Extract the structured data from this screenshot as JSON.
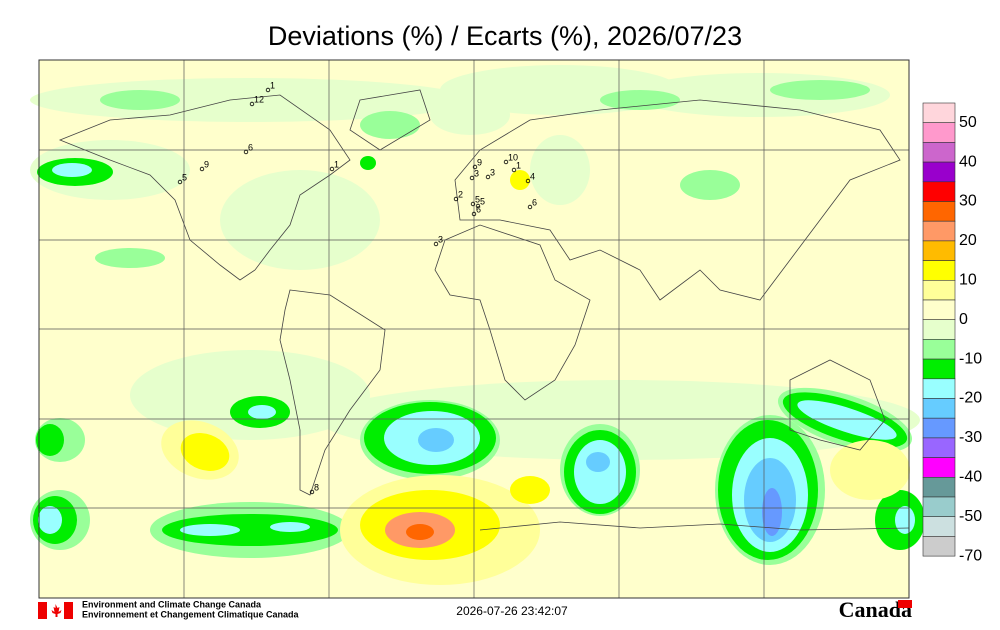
{
  "title": "Deviations (%) / Ecarts (%), 2026/07/23",
  "colorbar": {
    "labels": [
      50,
      40,
      30,
      20,
      10,
      0,
      -10,
      -20,
      -30,
      -40,
      -50,
      -70
    ],
    "colors": [
      "#ffd6dc",
      "#ff99cc",
      "#cc66cc",
      "#9900cc",
      "#ff0000",
      "#ff6600",
      "#ff9966",
      "#ffbb00",
      "#ffff00",
      "#ffff99",
      "#ffffcc",
      "#e6ffcc",
      "#99ff99",
      "#00ee00",
      "#99ffff",
      "#66ccff",
      "#6699ff",
      "#9966ff",
      "#ff00ff",
      "#669999",
      "#99cccc",
      "#cce0e0",
      "#cccccc"
    ]
  },
  "stations": [
    "1",
    "12",
    "6",
    "9",
    "5",
    "1",
    "3",
    "2",
    "5",
    "6",
    "10",
    "1",
    "4",
    "3",
    "9",
    "6",
    "3",
    "5",
    "8"
  ],
  "footer": {
    "agency_en": "Environment and Climate Change Canada",
    "agency_fr": "Environnement et Changement Climatique Canada",
    "timestamp": "2026-07-26 23:42:07",
    "wordmark": "Canada"
  }
}
